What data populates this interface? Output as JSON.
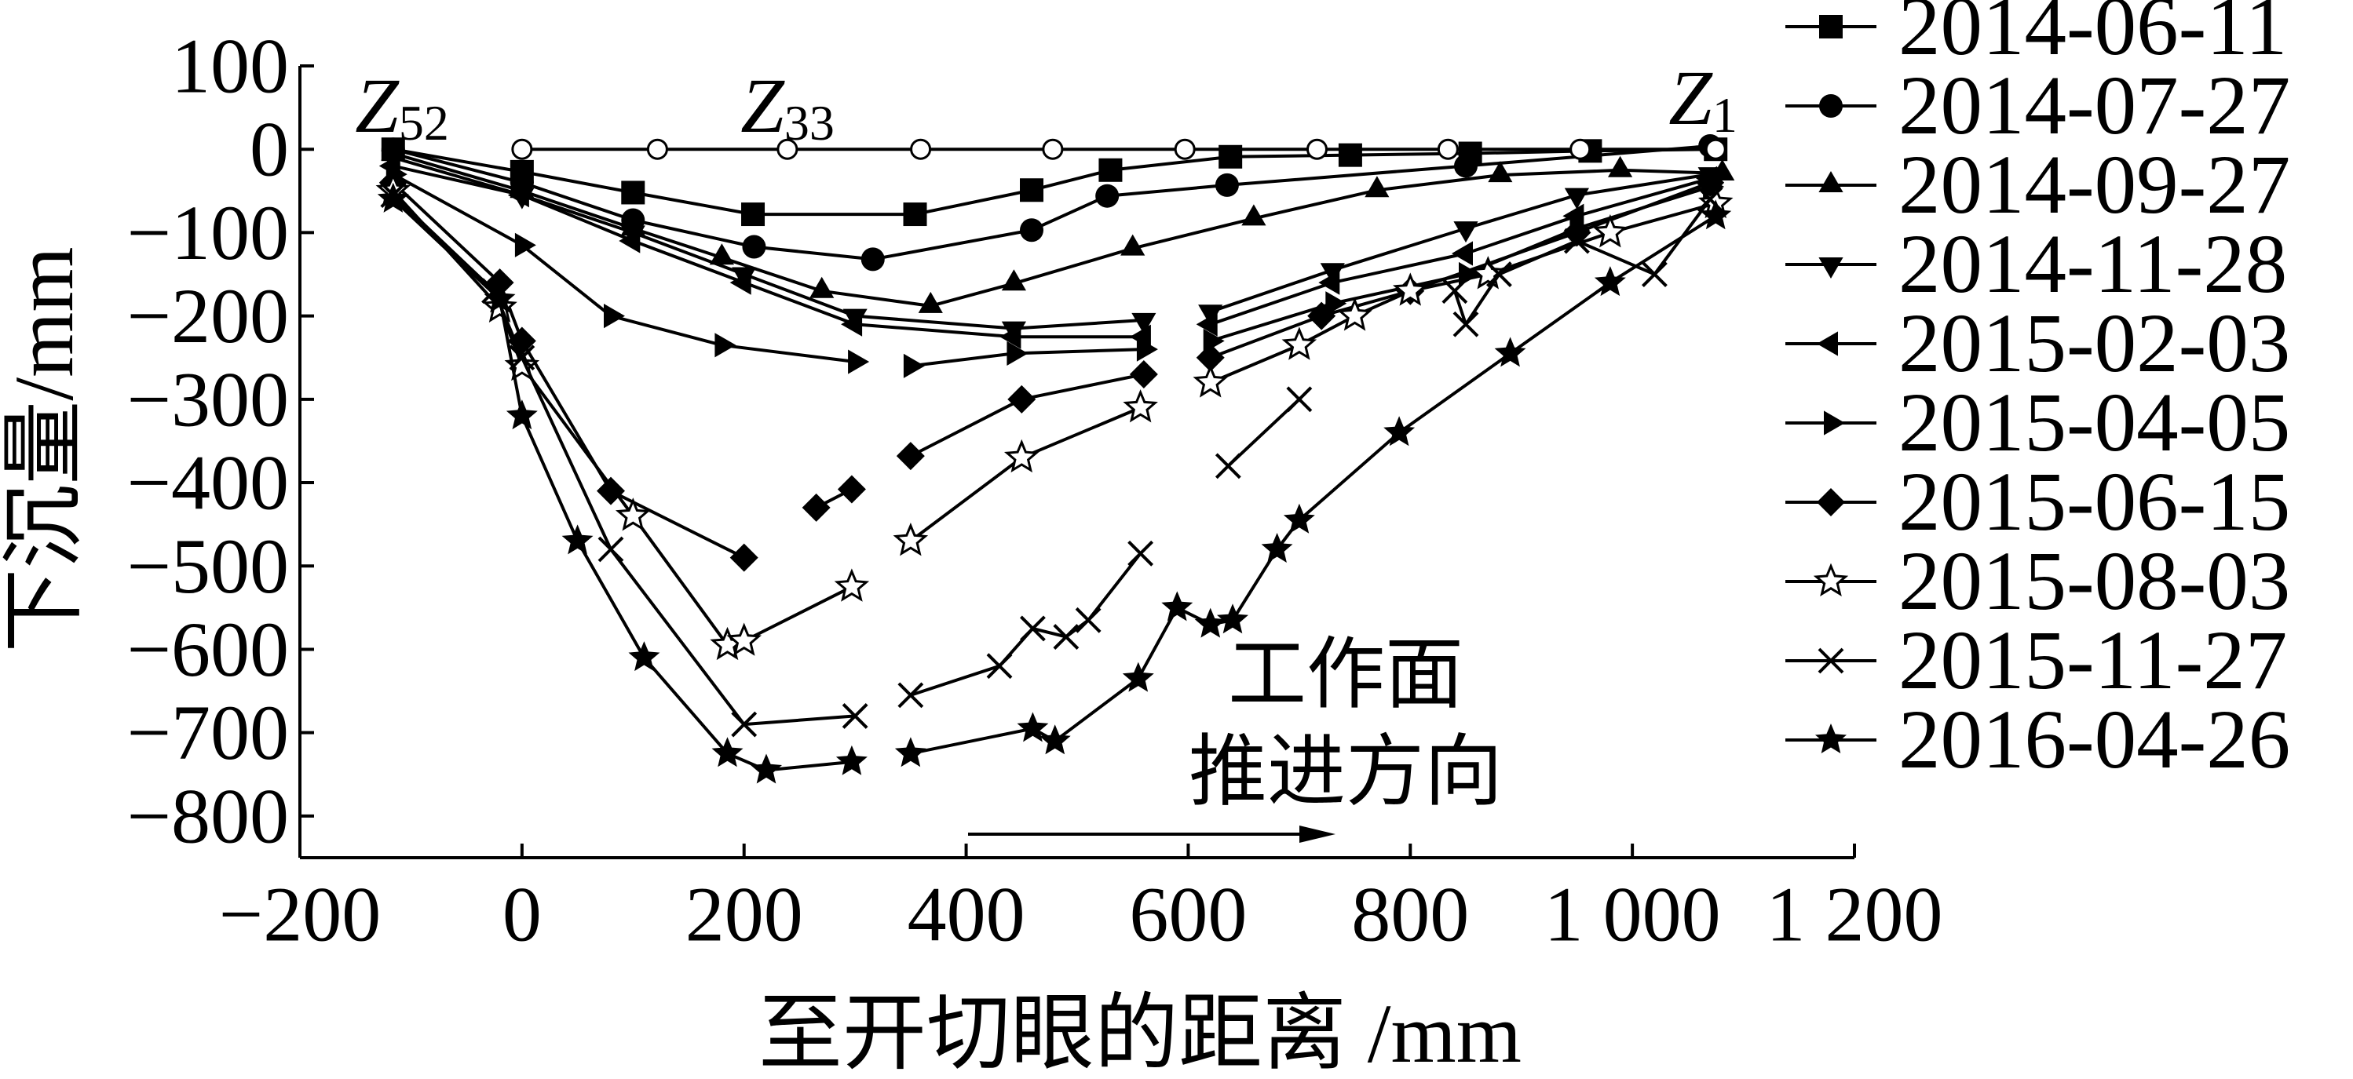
{
  "chart_data": {
    "type": "line",
    "x_label": "至开切眼的距离 /mm",
    "y_label": "下沉量/mm",
    "xlim": [
      -200,
      1200
    ],
    "ylim": [
      -850,
      100
    ],
    "xticks": [
      {
        "value": -200,
        "label": "−200"
      },
      0,
      200,
      400,
      600,
      800,
      {
        "value": 1000,
        "label": "1 000"
      },
      {
        "value": 1200,
        "label": "1 200"
      }
    ],
    "yticks": [
      {
        "value": -800,
        "label": "−800"
      },
      {
        "value": -700,
        "label": "−700"
      },
      {
        "value": -600,
        "label": "−600"
      },
      {
        "value": -500,
        "label": "−500"
      },
      {
        "value": -400,
        "label": "−400"
      },
      {
        "value": -300,
        "label": "−300"
      },
      {
        "value": -200,
        "label": "−200"
      },
      {
        "value": -100,
        "label": "−100"
      },
      0,
      100
    ],
    "annotations": [
      {
        "text": "Z",
        "subscript": "52"
      },
      {
        "text": "Z",
        "subscript": "33"
      },
      {
        "text": "Z",
        "subscript": "1"
      }
    ],
    "arrow_label": [
      "工作面",
      "推进方向"
    ],
    "series": [
      {
        "name": "2014-06-11",
        "color": "#000000",
        "marker": "square",
        "x": [
          -116,
          0,
          100,
          208,
          354,
          459,
          530,
          638,
          746,
          854,
          962,
          1075
        ],
        "values": [
          0,
          -27,
          -52,
          -78,
          -78,
          -49,
          -25,
          -9,
          -7,
          -5,
          -2,
          0
        ]
      },
      {
        "name": "2014-07-27",
        "color": "#000000",
        "marker": "circle",
        "x": [
          -116,
          0,
          100,
          209,
          316,
          459,
          527,
          635,
          850,
          1070
        ],
        "values": [
          0,
          -40,
          -85,
          -117,
          -132,
          -97,
          -56,
          -43,
          -20,
          4
        ]
      },
      {
        "name": "2014-09-27",
        "color": "#000000",
        "marker": "triangle-up",
        "x": [
          -116,
          0,
          100,
          180,
          270,
          368,
          443,
          550,
          659,
          770,
          881,
          989,
          1081
        ],
        "values": [
          -5,
          -50,
          -95,
          -130,
          -170,
          -188,
          -161,
          -119,
          -83,
          -49,
          -31,
          -25,
          -29
        ]
      },
      {
        "name": "2014-11-28",
        "color": "#000000",
        "marker": "triangle-down",
        "x": [
          -116,
          0,
          100,
          200,
          300,
          443,
          560,
          null,
          620,
          730,
          850,
          950,
          1070
        ],
        "values": [
          -10,
          -55,
          -100,
          -150,
          -200,
          -215,
          -205,
          null,
          -195,
          -145,
          -95,
          -55,
          -30
        ]
      },
      {
        "name": "2015-02-03",
        "color": "#000000",
        "marker": "triangle-left",
        "x": [
          -116,
          0,
          100,
          200,
          300,
          443,
          560,
          null,
          620,
          730,
          850,
          950,
          1070
        ],
        "values": [
          -20,
          -55,
          -110,
          -160,
          -210,
          -225,
          -225,
          null,
          -210,
          -160,
          -125,
          -80,
          -35
        ]
      },
      {
        "name": "2015-04-05",
        "color": "#000000",
        "marker": "triangle-right",
        "x": [
          -116,
          0,
          80,
          180,
          300,
          null,
          350,
          443,
          560,
          null,
          620,
          730,
          850,
          950,
          1070
        ],
        "values": [
          -30,
          -115,
          -200,
          -235,
          -255,
          null,
          -260,
          -245,
          -240,
          null,
          -230,
          -185,
          -150,
          -95,
          -45
        ]
      },
      {
        "name": "2015-06-15",
        "color": "#000000",
        "marker": "diamond",
        "x": [
          -116,
          -20,
          0,
          80,
          200,
          null,
          265,
          297,
          null,
          350,
          450,
          560,
          null,
          620,
          720,
          800,
          950,
          1070
        ],
        "values": [
          -40,
          -160,
          -230,
          -410,
          -490,
          null,
          -430,
          -408,
          null,
          -368,
          -300,
          -270,
          null,
          -250,
          -200,
          -170,
          -100,
          -40
        ]
      },
      {
        "name": "2015-08-03",
        "color": "#000000",
        "marker": "star-open",
        "x": [
          -116,
          -20,
          0,
          100,
          185,
          200,
          297,
          null,
          350,
          450,
          557,
          null,
          620,
          700,
          750,
          800,
          870,
          980,
          1075
        ],
        "values": [
          -50,
          -190,
          -260,
          -440,
          -595,
          -590,
          -525,
          null,
          -470,
          -370,
          -310,
          null,
          -280,
          -235,
          -200,
          -170,
          -150,
          -100,
          -65
        ]
      },
      {
        "name": "2015-11-27",
        "color": "#000000",
        "marker": "x",
        "x": [
          -116,
          -25,
          0,
          80,
          200,
          300,
          null,
          350,
          430,
          460,
          490,
          510,
          557,
          null,
          636,
          700,
          null,
          840,
          850,
          880,
          950,
          1020,
          1070
        ],
        "values": [
          -55,
          -170,
          -250,
          -480,
          -690,
          -680,
          null,
          -655,
          -620,
          -575,
          -585,
          -565,
          -485,
          null,
          -380,
          -300,
          null,
          -170,
          -210,
          -150,
          -110,
          -150,
          -60
        ]
      },
      {
        "name": "2016-04-26",
        "color": "#000000",
        "marker": "star",
        "x": [
          -116,
          -20,
          0,
          50,
          110,
          185,
          220,
          297,
          null,
          350,
          460,
          480,
          555,
          590,
          620,
          640,
          680,
          700,
          790,
          890,
          980,
          1075
        ],
        "values": [
          -60,
          -180,
          -320,
          -470,
          -610,
          -725,
          -745,
          -735,
          null,
          -725,
          -695,
          -710,
          -635,
          -550,
          -570,
          -565,
          -480,
          -445,
          -340,
          -245,
          -160,
          -80
        ]
      },
      {
        "color": "#000000",
        "marker": "circle-open",
        "x": [
          0,
          122,
          239,
          359,
          478,
          597,
          716,
          834,
          953,
          1075
        ],
        "values": [
          0,
          0,
          0,
          0,
          0,
          0,
          0,
          0,
          0,
          0
        ]
      }
    ]
  }
}
